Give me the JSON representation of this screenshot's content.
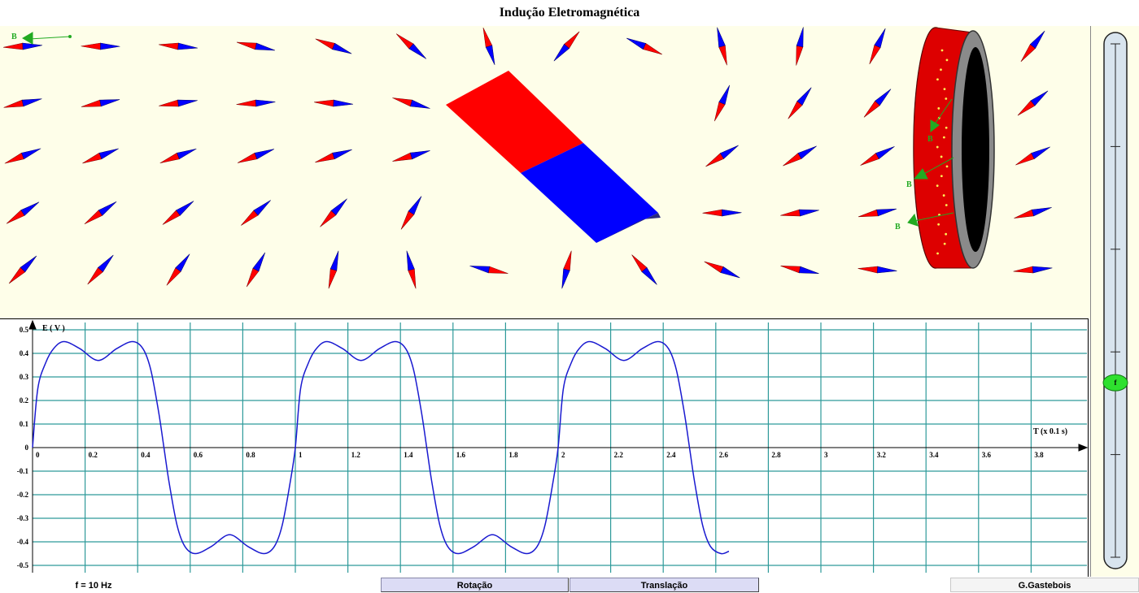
{
  "window": {
    "title": "Indução Eletromagnética"
  },
  "field": {
    "colors": {
      "north": "#ff0000",
      "south": "#0000ff",
      "vector": "#22aa22",
      "background": "#fefee9"
    },
    "b_label": "B",
    "magnet_icon": "bar-magnet-icon",
    "coil_icon": "coil-icon"
  },
  "graph": {
    "y_label": "E ( V )",
    "x_label": "T (x 0.1 s)",
    "y_ticks": [
      "0.5",
      "0.4",
      "0.3",
      "0.2",
      "0.1",
      "0",
      "-0.1",
      "-0.2",
      "-0.3",
      "-0.4",
      "-0.5"
    ],
    "x_ticks": [
      "0",
      "0.2",
      "0.4",
      "0.6",
      "0.8",
      "1",
      "1.2",
      "1.4",
      "1.6",
      "1.8",
      "2",
      "2.2",
      "2.4",
      "2.6",
      "2.8",
      "3",
      "3.2",
      "3.4",
      "3.6",
      "3.8"
    ],
    "colors": {
      "grid": "#2e9a9a",
      "curve": "#1a1ad0"
    }
  },
  "chart_data": {
    "type": "line",
    "xlabel": "T (x 0.1 s)",
    "ylabel": "E ( V )",
    "xlim": [
      0,
      4.0
    ],
    "ylim": [
      -0.5,
      0.5
    ],
    "grid": true,
    "x": [
      0,
      0.02,
      0.05,
      0.08,
      0.12,
      0.18,
      0.25,
      0.32,
      0.38,
      0.42,
      0.45,
      0.48,
      0.5,
      0.52,
      0.55,
      0.58,
      0.62,
      0.68,
      0.75,
      0.82,
      0.88,
      0.92,
      0.95,
      0.98,
      1.0,
      1.02,
      1.05,
      1.08,
      1.12,
      1.18,
      1.25,
      1.32,
      1.38,
      1.42,
      1.45,
      1.48,
      1.5,
      1.52,
      1.55,
      1.58,
      1.62,
      1.68,
      1.75,
      1.82,
      1.88,
      1.92,
      1.95,
      1.98,
      2.0,
      2.02,
      2.05,
      2.08,
      2.12,
      2.18,
      2.25,
      2.32,
      2.38,
      2.42,
      2.45,
      2.48,
      2.5,
      2.52,
      2.55,
      2.58,
      2.62,
      2.65
    ],
    "series": [
      {
        "values": [
          0,
          0.25,
          0.36,
          0.42,
          0.45,
          0.42,
          0.37,
          0.42,
          0.45,
          0.42,
          0.33,
          0.15,
          0,
          -0.15,
          -0.33,
          -0.42,
          -0.45,
          -0.42,
          -0.37,
          -0.42,
          -0.45,
          -0.42,
          -0.33,
          -0.15,
          0,
          0.25,
          0.36,
          0.42,
          0.45,
          0.42,
          0.37,
          0.42,
          0.45,
          0.42,
          0.33,
          0.15,
          0,
          -0.15,
          -0.33,
          -0.42,
          -0.45,
          -0.42,
          -0.37,
          -0.42,
          -0.45,
          -0.42,
          -0.33,
          -0.15,
          0,
          0.25,
          0.36,
          0.42,
          0.45,
          0.42,
          0.37,
          0.42,
          0.45,
          0.42,
          0.33,
          0.15,
          0,
          -0.15,
          -0.33,
          -0.42,
          -0.45,
          -0.44
        ]
      }
    ]
  },
  "slider": {
    "knob_label": "f",
    "value_fraction": 0.34,
    "ticks": 6
  },
  "status": {
    "frequency": "f = 10 Hz",
    "rotation_label": "Rotação",
    "translation_label": "Translação",
    "author": "G.Gastebois"
  }
}
